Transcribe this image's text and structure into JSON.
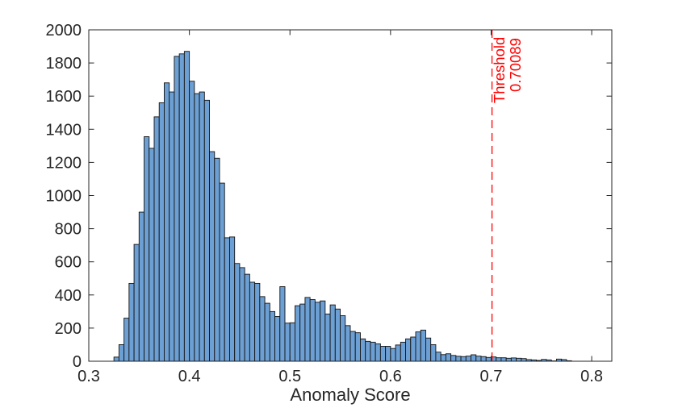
{
  "figure": {
    "background": "#ffffff",
    "text_color": "#262626",
    "axis_color": "#262626"
  },
  "chart_data": {
    "type": "bar",
    "subtype": "histogram",
    "title": "",
    "xlabel": "Anomaly Score",
    "ylabel": "",
    "xlim": [
      0.3,
      0.82
    ],
    "ylim": [
      0,
      2000
    ],
    "grid": false,
    "box": true,
    "x_ticks": [
      0.3,
      0.4,
      0.5,
      0.6,
      0.7,
      0.8
    ],
    "x_tick_labels": [
      "0.3",
      "0.4",
      "0.5",
      "0.6",
      "0.7",
      "0.8"
    ],
    "y_ticks": [
      0,
      200,
      400,
      600,
      800,
      1000,
      1200,
      1400,
      1600,
      1800,
      2000
    ],
    "y_tick_labels": [
      "0",
      "200",
      "400",
      "600",
      "800",
      "1000",
      "1200",
      "1400",
      "1600",
      "1800",
      "2000"
    ],
    "bin_start": 0.325,
    "bin_width": 0.005,
    "counts": [
      25,
      100,
      260,
      470,
      705,
      900,
      1355,
      1285,
      1475,
      1560,
      1680,
      1625,
      1840,
      1855,
      1870,
      1690,
      1615,
      1625,
      1575,
      1265,
      1225,
      1075,
      745,
      750,
      590,
      565,
      525,
      477,
      470,
      390,
      350,
      300,
      270,
      450,
      230,
      232,
      335,
      345,
      385,
      372,
      356,
      364,
      285,
      340,
      315,
      275,
      215,
      180,
      172,
      135,
      120,
      115,
      105,
      90,
      90,
      77,
      98,
      115,
      135,
      146,
      177,
      188,
      140,
      100,
      55,
      40,
      45,
      35,
      30,
      28,
      31,
      39,
      31,
      28,
      23,
      26,
      21,
      21,
      18,
      20,
      18,
      16,
      10,
      8,
      5,
      11,
      8,
      2,
      13,
      10,
      3
    ],
    "bar_fill": "#6C9FD3",
    "bar_edge": "#141414",
    "threshold": {
      "value": 0.70089,
      "label_line1": "Threshold",
      "label_line2": "0.70089",
      "color": "#FF0000",
      "style": "dashed"
    }
  }
}
